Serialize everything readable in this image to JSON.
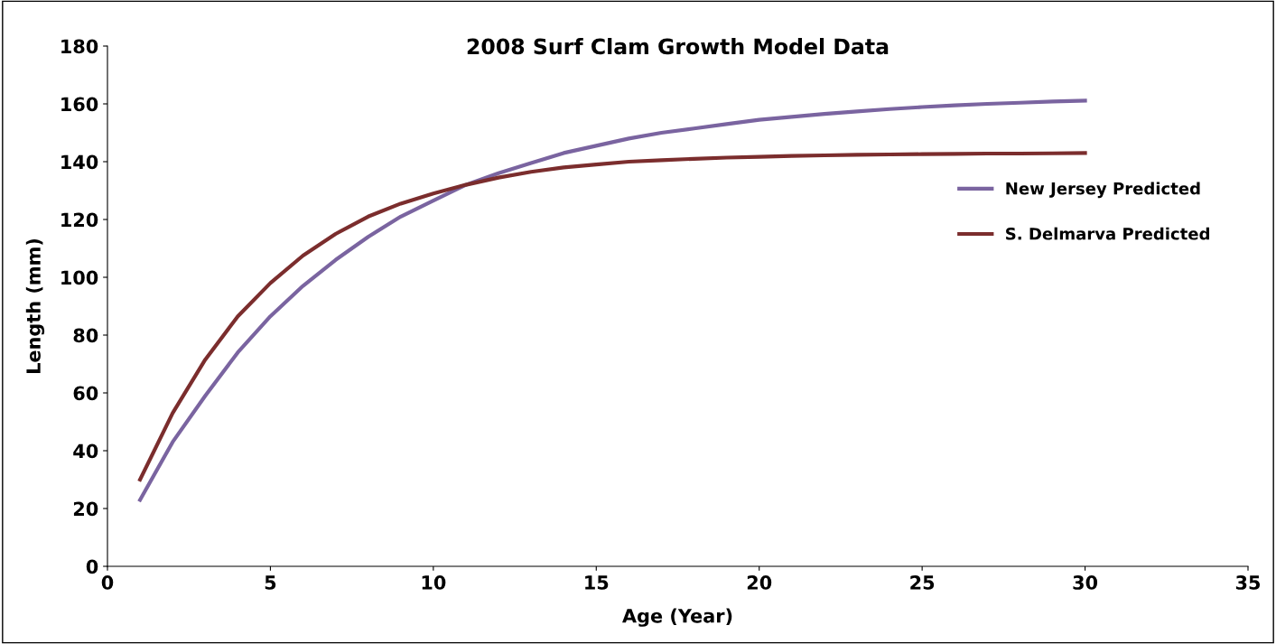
{
  "chart_data": {
    "type": "line",
    "title": "2008 Surf Clam Growth Model Data",
    "xlabel": "Age (Year)",
    "ylabel": "Length (mm)",
    "x": [
      1,
      2,
      3,
      4,
      5,
      6,
      7,
      8,
      9,
      10,
      11,
      12,
      13,
      14,
      15,
      16,
      17,
      18,
      19,
      20,
      21,
      22,
      23,
      24,
      25,
      26,
      27,
      28,
      29,
      30
    ],
    "series": [
      {
        "name": "New Jersey Predicted",
        "color": "#7a64a0",
        "values": [
          23,
          43,
          59,
          74,
          86.5,
          97,
          106,
          114,
          121,
          126.5,
          132,
          136,
          139.5,
          143,
          145.5,
          148,
          150,
          151.5,
          153,
          154.5,
          155.5,
          156.5,
          157.4,
          158.2,
          158.9,
          159.5,
          160,
          160.4,
          160.8,
          161.1
        ]
      },
      {
        "name": "S. Delmarva Predicted",
        "color": "#7b2d2d",
        "values": [
          30,
          53,
          71.5,
          86.5,
          98,
          107.5,
          115,
          121,
          125.5,
          129,
          132,
          134.5,
          136.5,
          138,
          139,
          140,
          140.5,
          141,
          141.4,
          141.7,
          142,
          142.2,
          142.4,
          142.5,
          142.6,
          142.7,
          142.8,
          142.8,
          142.9,
          143
        ]
      }
    ],
    "xlim": [
      0,
      35
    ],
    "xticks": [
      0,
      5,
      10,
      15,
      20,
      25,
      30,
      35
    ],
    "ylim": [
      0,
      180
    ],
    "yticks": [
      0,
      20,
      40,
      60,
      80,
      100,
      120,
      140,
      160,
      180
    ],
    "grid": false,
    "legend": "right",
    "marker": "none",
    "line_style": "solid"
  }
}
